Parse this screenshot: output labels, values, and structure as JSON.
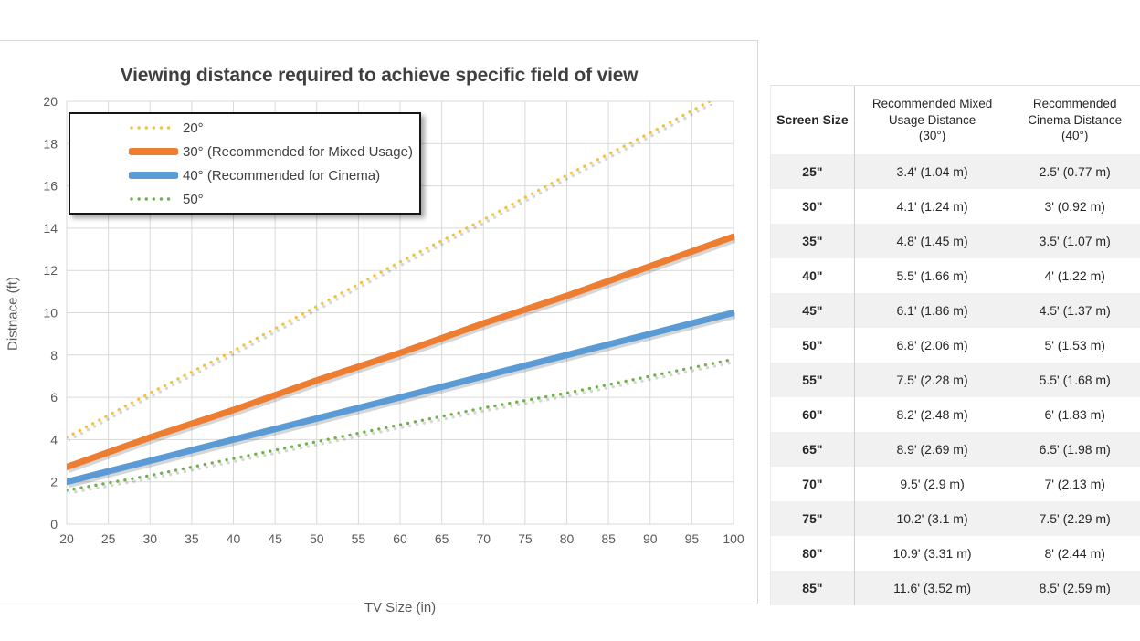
{
  "chart_data": {
    "type": "line",
    "title": "Viewing distance required to achieve specific field of view",
    "xlabel": "TV Size (in)",
    "ylabel": "Distnace (ft)",
    "x": [
      20,
      30,
      40,
      50,
      60,
      70,
      80,
      90,
      100
    ],
    "x_ticks": [
      20,
      25,
      30,
      35,
      40,
      45,
      50,
      55,
      60,
      65,
      70,
      75,
      80,
      85,
      90,
      95,
      100
    ],
    "y_ticks": [
      0,
      2,
      4,
      6,
      8,
      10,
      12,
      14,
      16,
      18,
      20
    ],
    "xlim": [
      20,
      100
    ],
    "ylim": [
      0,
      20
    ],
    "grid": true,
    "legend_position": "top-left",
    "series": [
      {
        "name": "20°",
        "style": "dotted",
        "color": "#f2c33e",
        "values": [
          4.1,
          6.2,
          8.2,
          10.3,
          12.4,
          14.4,
          16.5,
          18.5,
          20.6
        ]
      },
      {
        "name": "30° (Recommended for Mixed Usage)",
        "style": "solid",
        "color": "#ed7d31",
        "values": [
          2.7,
          4.1,
          5.4,
          6.8,
          8.1,
          9.5,
          10.8,
          12.2,
          13.6
        ]
      },
      {
        "name": "40° (Recommended for Cinema)",
        "style": "solid",
        "color": "#5b9bd5",
        "values": [
          2.0,
          3.0,
          4.0,
          5.0,
          6.0,
          7.0,
          8.0,
          9.0,
          10.0
        ]
      },
      {
        "name": "50°",
        "style": "dotted",
        "color": "#72b14c",
        "values": [
          1.6,
          2.3,
          3.1,
          3.9,
          4.7,
          5.5,
          6.2,
          7.0,
          7.8
        ]
      }
    ]
  },
  "table": {
    "headers": [
      {
        "lines": [
          "Screen Size"
        ]
      },
      {
        "lines": [
          "Recommended Mixed",
          "Usage Distance",
          "(30°)"
        ]
      },
      {
        "lines": [
          "Recommended",
          "Cinema Distance",
          "(40°)"
        ]
      }
    ],
    "rows": [
      [
        "25\"",
        "3.4' (1.04 m)",
        "2.5' (0.77 m)"
      ],
      [
        "30\"",
        "4.1' (1.24 m)",
        "3' (0.92 m)"
      ],
      [
        "35\"",
        "4.8' (1.45 m)",
        "3.5' (1.07 m)"
      ],
      [
        "40\"",
        "5.5' (1.66 m)",
        "4' (1.22 m)"
      ],
      [
        "45\"",
        "6.1' (1.86 m)",
        "4.5' (1.37 m)"
      ],
      [
        "50\"",
        "6.8' (2.06 m)",
        "5' (1.53 m)"
      ],
      [
        "55\"",
        "7.5' (2.28 m)",
        "5.5' (1.68 m)"
      ],
      [
        "60\"",
        "8.2' (2.48 m)",
        "6' (1.83 m)"
      ],
      [
        "65\"",
        "8.9' (2.69 m)",
        "6.5' (1.98 m)"
      ],
      [
        "70\"",
        "9.5' (2.9 m)",
        "7' (2.13 m)"
      ],
      [
        "75\"",
        "10.2' (3.1 m)",
        "7.5' (2.29 m)"
      ],
      [
        "80\"",
        "10.9' (3.31 m)",
        "8' (2.44 m)"
      ],
      [
        "85\"",
        "11.6' (3.52 m)",
        "8.5' (2.59 m)"
      ]
    ],
    "colors": {
      "stripe": "#f1f1f2",
      "divider": "#cfcfcf",
      "text": "#262626"
    }
  },
  "style_colors": {
    "gridline": "#d9d9d9",
    "axis_text": "#595959",
    "title_text": "#3f3f3f"
  }
}
